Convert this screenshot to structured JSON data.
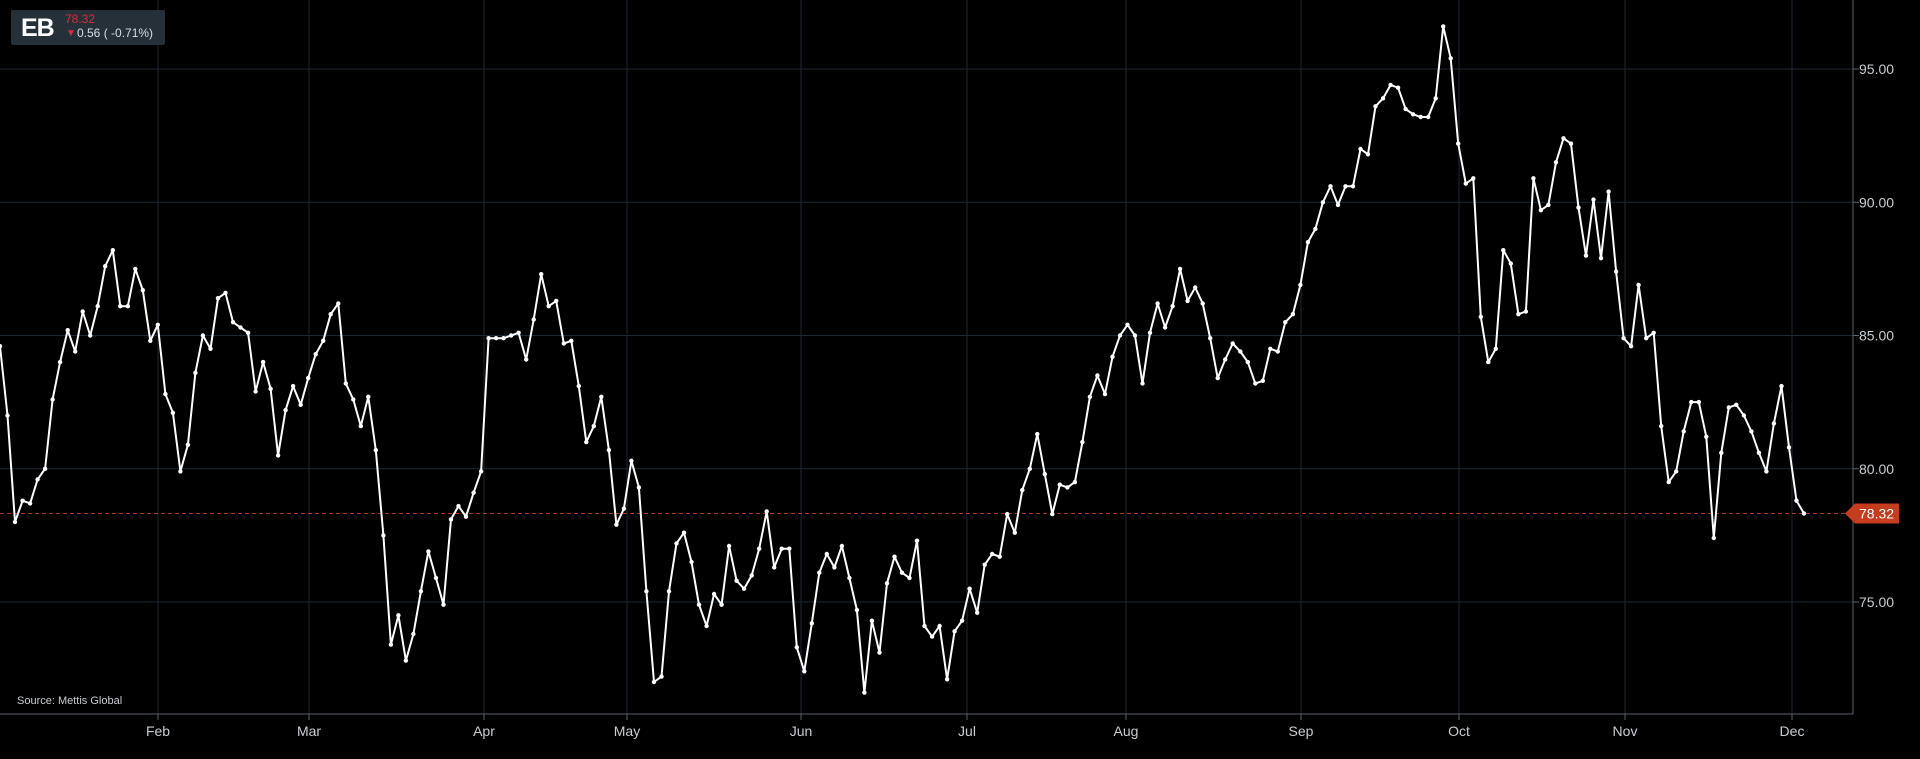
{
  "ticker": {
    "symbol": "EB",
    "last_price": "78.32",
    "change_arrow": "▼",
    "change": "0.56 ( -0.71%)",
    "down_color": "#e0293a"
  },
  "source": "Source: Mettis Global",
  "chart_data": {
    "type": "line",
    "x_ticks": [
      "Feb",
      "Mar",
      "Apr",
      "May",
      "Jun",
      "Jul",
      "Aug",
      "Sep",
      "Oct",
      "Nov",
      "Dec"
    ],
    "y_ticks": [
      "75.00",
      "80.00",
      "85.00",
      "90.00",
      "95.00"
    ],
    "ylim": [
      70.5,
      97.5
    ],
    "grid": true,
    "y_axis_side": "right",
    "current_value": 78.32,
    "current_label": "78.32",
    "line_color": "#ffffff",
    "marker_color": "#e84a27",
    "series": [
      {
        "values": [
          84.6,
          82.0,
          78.0,
          78.8,
          78.7,
          79.6,
          80.0,
          82.6,
          84.0,
          85.2,
          84.4,
          85.9,
          85.0,
          86.1,
          87.6,
          88.2,
          86.1,
          86.1,
          87.5,
          86.7,
          84.8,
          85.4,
          82.8,
          82.1,
          79.9,
          80.9,
          83.6,
          85.0,
          84.5,
          86.4,
          86.6,
          85.5,
          85.3,
          85.1,
          82.9,
          84.0,
          83.0,
          80.5,
          82.2,
          83.1,
          82.4,
          83.4,
          84.3,
          84.8,
          85.8,
          86.2,
          83.2,
          82.6,
          81.6,
          82.7,
          80.7,
          77.5,
          73.4,
          74.5,
          72.8,
          73.8,
          75.4,
          76.9,
          75.9,
          74.9,
          78.1,
          78.6,
          78.2,
          79.1,
          79.9,
          84.9,
          84.9,
          84.9,
          85.0,
          85.1,
          84.1,
          85.6,
          87.3,
          86.1,
          86.3,
          84.7,
          84.8,
          83.1,
          81.0,
          81.6,
          82.7,
          80.7,
          77.9,
          78.5,
          80.3,
          79.3,
          75.4,
          72.0,
          72.2,
          75.4,
          77.2,
          77.6,
          76.5,
          74.9,
          74.1,
          75.3,
          74.9,
          77.1,
          75.8,
          75.5,
          76.0,
          77.0,
          78.4,
          76.3,
          77.0,
          77.0,
          73.3,
          72.4,
          74.2,
          76.1,
          76.8,
          76.3,
          77.1,
          75.9,
          74.7,
          71.6,
          74.3,
          73.1,
          75.7,
          76.7,
          76.1,
          75.9,
          77.3,
          74.1,
          73.7,
          74.1,
          72.1,
          73.9,
          74.3,
          75.5,
          74.6,
          76.4,
          76.8,
          76.7,
          78.3,
          77.6,
          79.2,
          80.0,
          81.3,
          79.8,
          78.3,
          79.4,
          79.3,
          79.5,
          81.0,
          82.7,
          83.5,
          82.8,
          84.2,
          85.0,
          85.4,
          85.0,
          83.2,
          85.1,
          86.2,
          85.3,
          86.1,
          87.5,
          86.3,
          86.8,
          86.2,
          84.9,
          83.4,
          84.1,
          84.7,
          84.4,
          84.0,
          83.2,
          83.3,
          84.5,
          84.4,
          85.5,
          85.8,
          86.9,
          88.5,
          89.0,
          90.0,
          90.6,
          89.9,
          90.6,
          90.6,
          92.0,
          91.8,
          93.6,
          93.9,
          94.4,
          94.3,
          93.5,
          93.3,
          93.2,
          93.2,
          93.9,
          96.6,
          95.4,
          92.2,
          90.7,
          90.9,
          85.7,
          84.0,
          84.5,
          88.2,
          87.7,
          85.8,
          85.9,
          90.9,
          89.7,
          89.9,
          91.5,
          92.4,
          92.2,
          89.8,
          88.0,
          90.1,
          87.9,
          90.4,
          87.4,
          84.9,
          84.6,
          86.9,
          84.9,
          85.1,
          81.6,
          79.5,
          79.9,
          81.4,
          82.5,
          82.5,
          81.2,
          77.4,
          80.6,
          82.3,
          82.4,
          82.0,
          81.4,
          80.6,
          79.9,
          81.7,
          83.1,
          80.8,
          78.8,
          78.32
        ]
      }
    ]
  }
}
